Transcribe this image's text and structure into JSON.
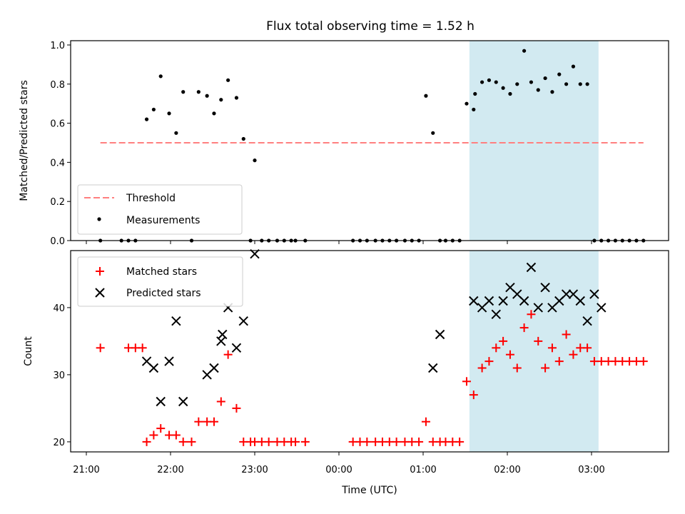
{
  "chart_data": [
    {
      "type": "scatter",
      "title": "Flux total observing time = 1.52 h",
      "ylabel": "Matched/Predicted stars",
      "xlabel": "",
      "ylim": [
        0,
        1.0
      ],
      "yticks": [
        "0.0",
        "0.2",
        "0.4",
        "0.6",
        "0.8",
        "1.0"
      ],
      "legend_position": "lower-left",
      "threshold": {
        "name": "Threshold",
        "value": 0.5,
        "x_start": "21:10",
        "x_end": "03:37",
        "color": "#ff7f7f"
      },
      "shaded_region": {
        "x_start": "01:33",
        "x_end": "03:05",
        "color": "#add8e6"
      },
      "series": [
        {
          "name": "Measurements",
          "color": "#000000",
          "x": [
            "21:10",
            "21:25",
            "21:30",
            "21:35",
            "21:43",
            "21:48",
            "21:53",
            "21:59",
            "22:04",
            "22:09",
            "22:15",
            "22:20",
            "22:26",
            "22:31",
            "22:36",
            "22:41",
            "22:47",
            "22:52",
            "22:57",
            "23:00",
            "23:05",
            "23:10",
            "23:16",
            "23:21",
            "23:26",
            "23:29",
            "23:36",
            "00:10",
            "00:15",
            "00:20",
            "00:26",
            "00:31",
            "00:36",
            "00:41",
            "00:47",
            "00:52",
            "00:57",
            "01:02",
            "01:07",
            "01:12",
            "01:16",
            "01:21",
            "01:26",
            "01:31",
            "01:36",
            "01:37",
            "01:42",
            "01:47",
            "01:52",
            "01:57",
            "02:02",
            "02:07",
            "02:12",
            "02:17",
            "02:22",
            "02:27",
            "02:32",
            "02:37",
            "02:42",
            "02:47",
            "02:52",
            "02:57",
            "03:02",
            "03:07",
            "03:12",
            "03:17",
            "03:22",
            "03:27",
            "03:32",
            "03:37"
          ],
          "y": [
            0,
            0,
            0,
            0,
            0.62,
            0.67,
            0.84,
            0.65,
            0.55,
            0.76,
            0,
            0.76,
            0.74,
            0.65,
            0.72,
            0.82,
            0.73,
            0.52,
            0,
            0.41,
            0,
            0,
            0,
            0,
            0,
            0,
            0,
            0,
            0,
            0,
            0,
            0,
            0,
            0,
            0,
            0,
            0,
            0.74,
            0.55,
            0,
            0,
            0,
            0,
            0.7,
            0.67,
            0.75,
            0.81,
            0.82,
            0.81,
            0.78,
            0.75,
            0.8,
            0.97,
            0.81,
            0.77,
            0.83,
            0.76,
            0.85,
            0.8,
            0.89,
            0.8,
            0.8,
            0,
            0,
            0,
            0,
            0,
            0,
            0,
            0
          ]
        }
      ]
    },
    {
      "type": "scatter",
      "title": "",
      "ylabel": "Count",
      "xlabel": "Time (UTC)",
      "ylim": [
        18.5,
        48.5
      ],
      "yticks": [
        "20",
        "30",
        "40"
      ],
      "xticks": [
        "21:00",
        "22:00",
        "23:00",
        "00:00",
        "01:00",
        "02:00",
        "03:00"
      ],
      "legend_position": "upper-left",
      "shaded_region": {
        "x_start": "01:33",
        "x_end": "03:05",
        "color": "#add8e6"
      },
      "series": [
        {
          "name": "Matched stars",
          "color": "#ff0000",
          "marker": "plus",
          "x": [
            "21:10",
            "21:30",
            "21:35",
            "21:40",
            "21:43",
            "21:48",
            "21:53",
            "21:59",
            "22:04",
            "22:09",
            "22:15",
            "22:20",
            "22:26",
            "22:31",
            "22:36",
            "22:41",
            "22:47",
            "22:52",
            "22:57",
            "23:00",
            "23:05",
            "23:10",
            "23:16",
            "23:21",
            "23:26",
            "23:29",
            "23:36",
            "00:10",
            "00:15",
            "00:20",
            "00:26",
            "00:31",
            "00:36",
            "00:41",
            "00:47",
            "00:52",
            "00:57",
            "01:02",
            "01:07",
            "01:12",
            "01:16",
            "01:21",
            "01:26",
            "01:31",
            "01:36",
            "01:42",
            "01:47",
            "01:52",
            "01:57",
            "02:02",
            "02:07",
            "02:12",
            "02:17",
            "02:22",
            "02:27",
            "02:32",
            "02:37",
            "02:42",
            "02:47",
            "02:52",
            "02:57",
            "03:02",
            "03:07",
            "03:12",
            "03:17",
            "03:22",
            "03:27",
            "03:32",
            "03:37"
          ],
          "y": [
            34,
            34,
            34,
            34,
            20,
            21,
            22,
            21,
            21,
            20,
            20,
            23,
            23,
            23,
            26,
            33,
            25,
            20,
            20,
            20,
            20,
            20,
            20,
            20,
            20,
            20,
            20,
            20,
            20,
            20,
            20,
            20,
            20,
            20,
            20,
            20,
            20,
            23,
            20,
            20,
            20,
            20,
            20,
            29,
            27,
            31,
            32,
            34,
            35,
            33,
            31,
            37,
            39,
            35,
            31,
            34,
            32,
            36,
            33,
            34,
            34,
            32,
            32,
            32,
            32,
            32,
            32,
            32,
            32
          ]
        },
        {
          "name": "Predicted stars",
          "color": "#000000",
          "marker": "x",
          "x": [
            "21:43",
            "21:48",
            "21:53",
            "21:59",
            "22:04",
            "22:09",
            "22:26",
            "22:31",
            "22:36",
            "22:37",
            "22:41",
            "22:47",
            "22:52",
            "23:00",
            "01:07",
            "01:12",
            "01:36",
            "01:42",
            "01:47",
            "01:52",
            "01:57",
            "02:02",
            "02:07",
            "02:12",
            "02:17",
            "02:22",
            "02:27",
            "02:32",
            "02:37",
            "02:42",
            "02:47",
            "02:52",
            "02:57",
            "03:02",
            "03:07"
          ],
          "y": [
            32,
            31,
            26,
            32,
            38,
            26,
            30,
            31,
            35,
            36,
            40,
            34,
            38,
            48,
            31,
            36,
            41,
            40,
            41,
            39,
            41,
            43,
            42,
            41,
            46,
            40,
            43,
            40,
            41,
            42,
            42,
            41,
            38,
            42,
            40
          ]
        }
      ]
    }
  ]
}
